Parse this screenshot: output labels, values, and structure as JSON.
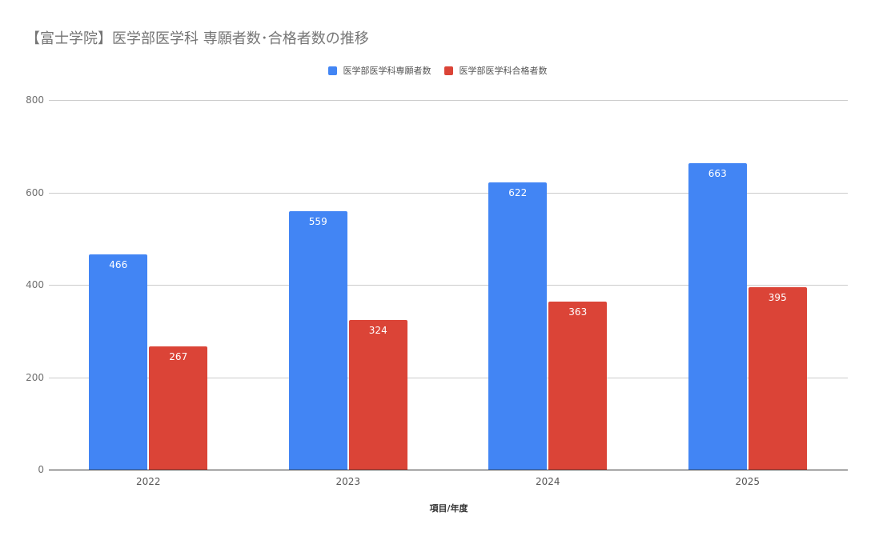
{
  "chart_data": {
    "type": "bar",
    "title": "【富士学院】医学部医学科 専願者数･合格者数の推移",
    "categories": [
      "2022",
      "2023",
      "2024",
      "2025"
    ],
    "series": [
      {
        "name": "医学部医学科専願者数",
        "values": [
          466,
          559,
          622,
          663
        ],
        "color": "#4285f4"
      },
      {
        "name": "医学部医学科合格者数",
        "values": [
          267,
          324,
          363,
          395
        ],
        "color": "#db4437"
      }
    ],
    "xlabel": "項目/年度",
    "ylabel": "",
    "ylim": [
      0,
      800
    ],
    "yticks": [
      "0",
      "200",
      "400",
      "600",
      "800"
    ],
    "grid": true,
    "legend_position": "top",
    "data_labels": true
  }
}
